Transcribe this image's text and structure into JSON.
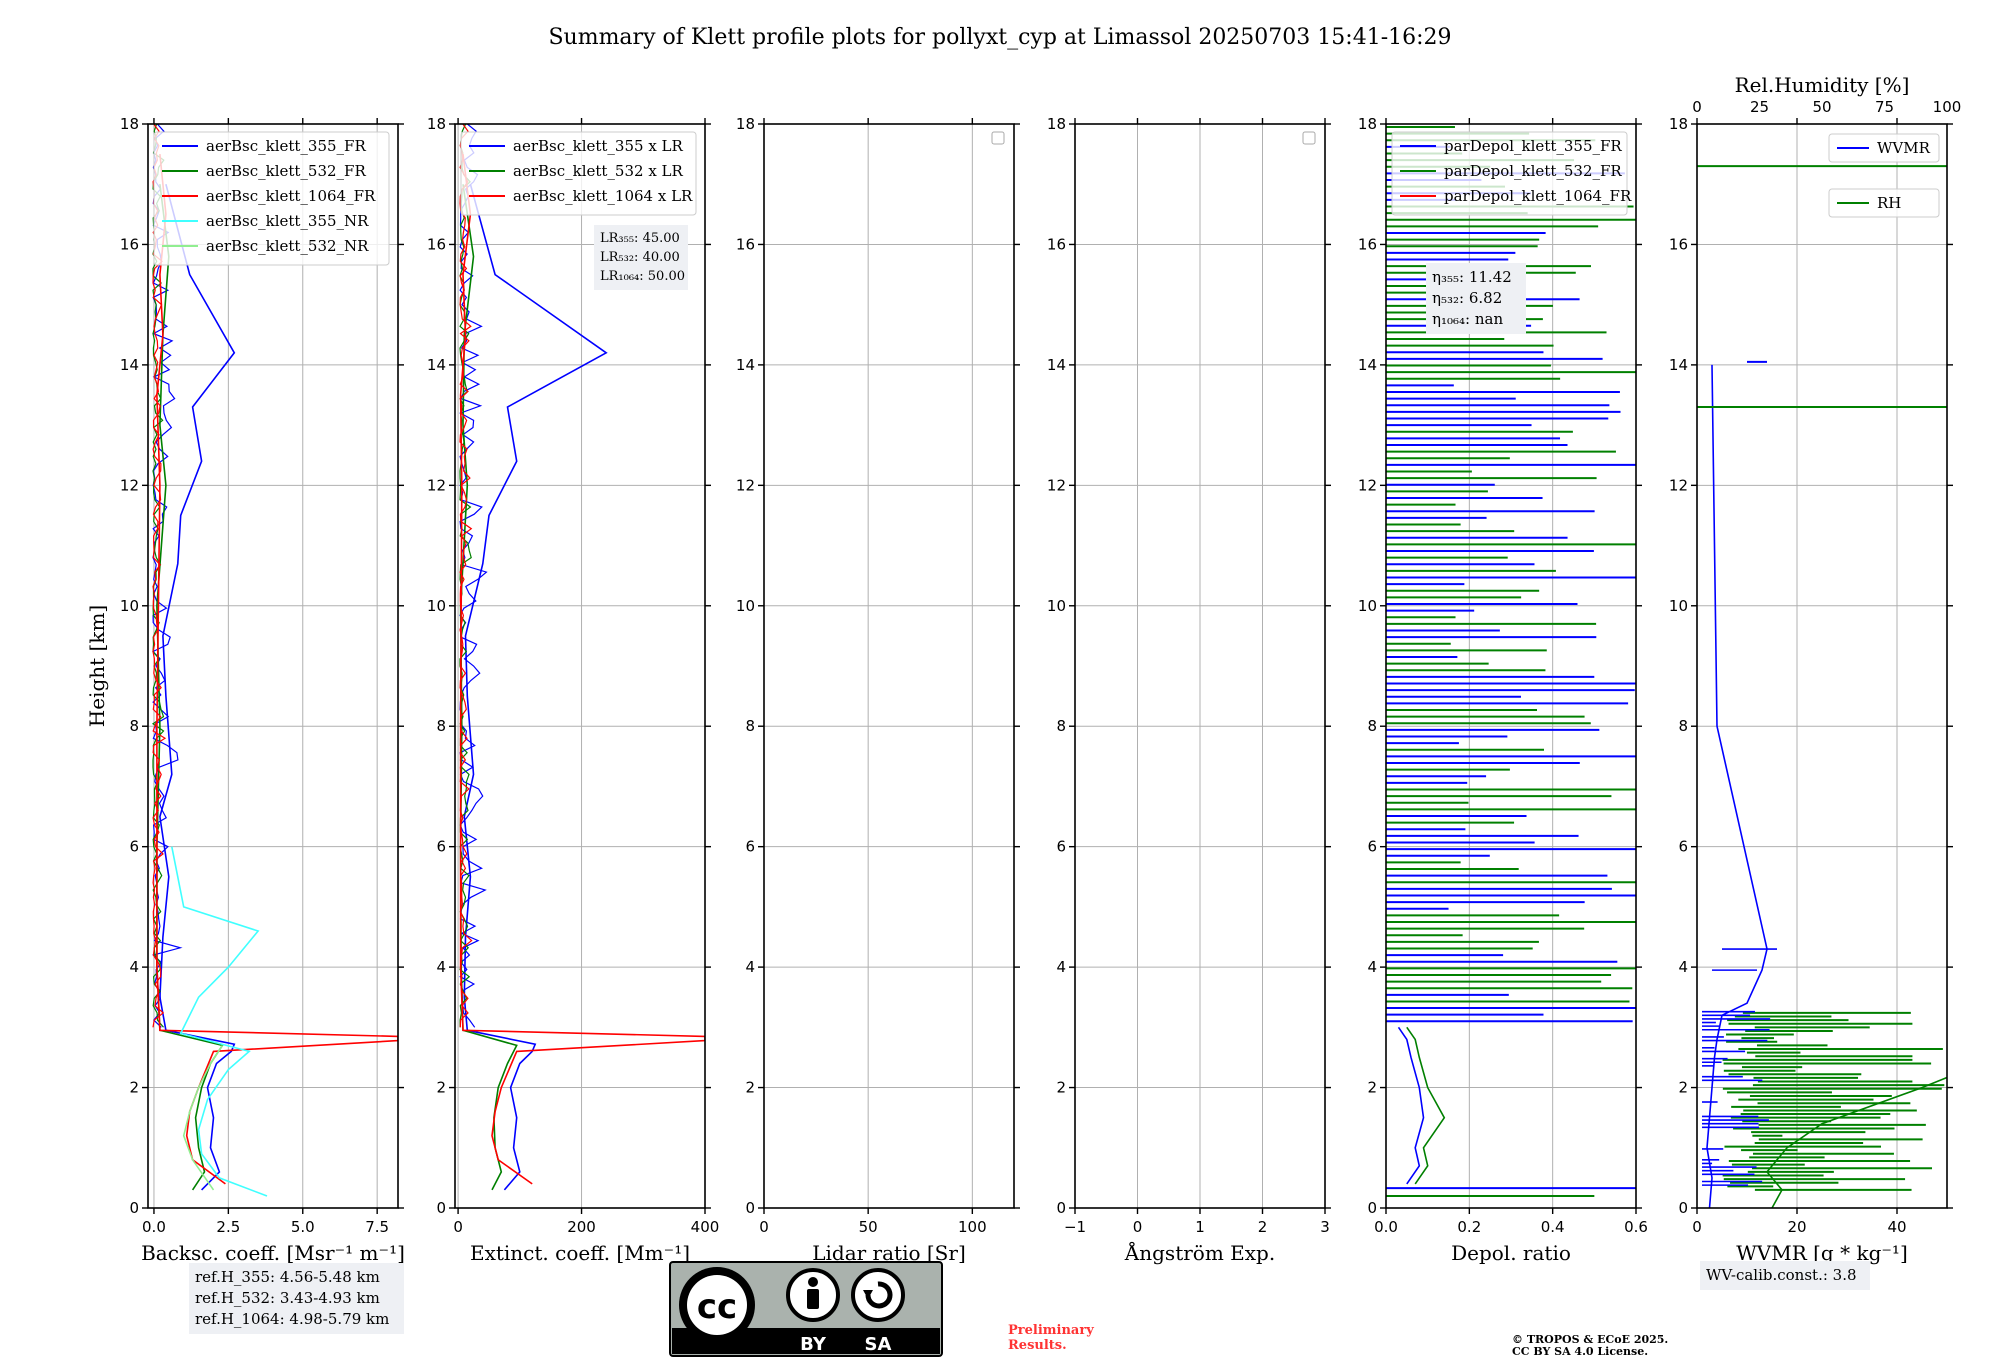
{
  "title": "Summary of Klett profile plots for pollyxt_cyp at Limassol 20250703 15:41-16:29",
  "colors": {
    "c355": "#0000ff",
    "c532": "#008000",
    "c1064": "#ff0000",
    "c355nr": "#40ffff",
    "c532nr": "#90ee90"
  },
  "chart_data": [
    {
      "type": "line",
      "panel": "backscatter",
      "xlabel": "Backsc. coeff. [Msr⁻¹ m⁻¹]",
      "ylabel": "Height [km]",
      "xlim": [
        -0.2,
        8.2
      ],
      "ylim": [
        0,
        18
      ],
      "xticks": [
        "0.0",
        "2.5",
        "5.0",
        "7.5"
      ],
      "xtick_values": [
        0,
        2.5,
        5,
        7.5
      ],
      "yticks": [
        "0",
        "2",
        "4",
        "6",
        "8",
        "10",
        "12",
        "14",
        "16",
        "18"
      ],
      "legend": [
        "aerBsc_klett_355_FR",
        "aerBsc_klett_532_FR",
        "aerBsc_klett_1064_FR",
        "aerBsc_klett_355_NR",
        "aerBsc_klett_532_NR"
      ],
      "legend_position": "top-left",
      "grid": true,
      "series": [
        {
          "name": "aerBsc_klett_355_FR",
          "color": "#0000ff",
          "x": [
            1.6,
            2.2,
            1.9,
            2.0,
            1.8,
            2.1,
            2.6,
            2.7,
            0.4,
            0.2,
            0.3,
            0.5,
            0.2,
            0.6,
            0.4,
            0.3,
            0.8,
            0.9,
            1.6,
            1.3,
            2.7,
            1.2,
            0.4
          ],
          "y": [
            0.3,
            0.6,
            1.0,
            1.5,
            2.0,
            2.4,
            2.6,
            2.72,
            2.95,
            3.5,
            4.5,
            5.5,
            6.5,
            7.2,
            8.5,
            9.5,
            10.7,
            11.5,
            12.4,
            13.3,
            14.2,
            15.5,
            17.0
          ]
        },
        {
          "name": "aerBsc_klett_532_FR",
          "color": "#008000",
          "x": [
            1.3,
            1.7,
            1.5,
            1.4,
            1.6,
            1.9,
            2.3,
            0.2,
            0.1,
            0.1,
            0.2,
            0.1,
            0.4,
            0.2,
            0.3,
            0.5,
            0.2
          ],
          "y": [
            0.3,
            0.6,
            1.0,
            1.5,
            2.0,
            2.4,
            2.7,
            2.95,
            4.0,
            6.0,
            8.0,
            10.0,
            12.0,
            13.0,
            14.5,
            15.8,
            17.0
          ]
        },
        {
          "name": "aerBsc_klett_1064_FR",
          "color": "#ff0000",
          "x": [
            2.4,
            1.3,
            1.1,
            1.2,
            1.5,
            2.0,
            8.2,
            8.2,
            0.2,
            0.1,
            0.1,
            0.2,
            0.1,
            0.3,
            0.2,
            0.4,
            0.2
          ],
          "y": [
            0.4,
            0.8,
            1.2,
            1.6,
            2.0,
            2.6,
            2.78,
            2.85,
            2.95,
            4.0,
            8.0,
            12.0,
            13.5,
            14.5,
            15.5,
            16.5,
            17.5
          ]
        },
        {
          "name": "aerBsc_klett_355_NR",
          "color": "#40ffff",
          "x": [
            3.8,
            2.2,
            1.6,
            1.5,
            1.8,
            2.5,
            3.2,
            0.9,
            1.5,
            2.5,
            3.5,
            1.0,
            0.6
          ],
          "y": [
            0.2,
            0.5,
            0.9,
            1.3,
            1.8,
            2.3,
            2.6,
            2.9,
            3.5,
            4.0,
            4.6,
            5.0,
            6.0
          ]
        },
        {
          "name": "aerBsc_klett_532_NR",
          "color": "#90ee90",
          "x": [
            2.0,
            1.3,
            1.0,
            1.2,
            1.5,
            1.9,
            2.3
          ],
          "y": [
            0.3,
            0.8,
            1.2,
            1.6,
            2.0,
            2.4,
            2.7
          ]
        }
      ],
      "annotation": [
        "ref.H_355: 4.56-5.48 km",
        "ref.H_532: 3.43-4.93 km",
        "ref.H_1064: 4.98-5.79 km"
      ]
    },
    {
      "type": "line",
      "panel": "extinction",
      "xlabel": "Extinct. coeff. [Mm⁻¹]",
      "xlim": [
        -5,
        400
      ],
      "ylim": [
        0,
        18
      ],
      "xticks": [
        "0",
        "200",
        "400"
      ],
      "xtick_values": [
        0,
        200,
        400
      ],
      "yticks": [
        "0",
        "2",
        "4",
        "6",
        "8",
        "10",
        "12",
        "14",
        "16",
        "18"
      ],
      "legend": [
        "aerBsc_klett_355 x LR",
        "aerBsc_klett_532 x LR",
        "aerBsc_klett_1064 x LR"
      ],
      "legend_position": "top-left",
      "grid": true,
      "series": [
        {
          "name": "aerBsc_klett_355 x LR",
          "color": "#0000ff",
          "x": [
            75,
            100,
            90,
            95,
            85,
            100,
            120,
            125,
            15,
            10,
            12,
            20,
            10,
            25,
            15,
            12,
            40,
            50,
            95,
            80,
            240,
            60,
            20
          ],
          "y": [
            0.3,
            0.6,
            1.0,
            1.5,
            2.0,
            2.4,
            2.6,
            2.72,
            2.95,
            3.5,
            4.5,
            5.5,
            6.5,
            7.2,
            8.5,
            9.5,
            10.7,
            11.5,
            12.4,
            13.3,
            14.2,
            15.5,
            17.0
          ]
        },
        {
          "name": "aerBsc_klett_532 x LR",
          "color": "#008000",
          "x": [
            55,
            70,
            60,
            58,
            65,
            80,
            95,
            8,
            5,
            4,
            6,
            4,
            15,
            8,
            10,
            25,
            8
          ],
          "y": [
            0.3,
            0.6,
            1.0,
            1.5,
            2.0,
            2.4,
            2.7,
            2.95,
            4.0,
            6.0,
            8.0,
            10.0,
            12.0,
            13.0,
            14.5,
            15.8,
            17.0
          ]
        },
        {
          "name": "aerBsc_klett_1064 x LR",
          "color": "#ff0000",
          "x": [
            120,
            65,
            55,
            60,
            70,
            95,
            400,
            400,
            8,
            4,
            4,
            6,
            4,
            12,
            8,
            20,
            8
          ],
          "y": [
            0.4,
            0.8,
            1.2,
            1.6,
            2.0,
            2.6,
            2.78,
            2.85,
            2.95,
            4.0,
            8.0,
            12.0,
            13.5,
            14.5,
            15.5,
            16.5,
            17.5
          ]
        }
      ],
      "annotation": [
        "LR₃₅₅: 45.00",
        "LR₅₃₂: 40.00",
        "LR₁₀₆₄: 50.00"
      ]
    },
    {
      "type": "line",
      "panel": "lidar-ratio",
      "xlabel": "Lidar ratio [Sr]",
      "xlim": [
        0,
        120
      ],
      "ylim": [
        0,
        18
      ],
      "xticks": [
        "0",
        "50",
        "100"
      ],
      "xtick_values": [
        0,
        50,
        100
      ],
      "yticks": [
        "0",
        "2",
        "4",
        "6",
        "8",
        "10",
        "12",
        "14",
        "16",
        "18"
      ],
      "grid": true,
      "series": []
    },
    {
      "type": "line",
      "panel": "angstroem",
      "xlabel": "Ångström Exp.",
      "xlim": [
        -1,
        3
      ],
      "ylim": [
        0,
        18
      ],
      "xticks": [
        "−1",
        "0",
        "1",
        "2",
        "3"
      ],
      "xtick_values": [
        -1,
        0,
        1,
        2,
        3
      ],
      "yticks": [
        "0",
        "2",
        "4",
        "6",
        "8",
        "10",
        "12",
        "14",
        "16",
        "18"
      ],
      "grid": true,
      "series": []
    },
    {
      "type": "line",
      "panel": "depol",
      "xlabel": "Depol. ratio",
      "xlim": [
        0,
        0.6
      ],
      "ylim": [
        0,
        18
      ],
      "xticks": [
        "0.0",
        "0.2",
        "0.4",
        "0.6"
      ],
      "xtick_values": [
        0,
        0.2,
        0.4,
        0.6
      ],
      "yticks": [
        "0",
        "2",
        "4",
        "6",
        "8",
        "10",
        "12",
        "14",
        "16",
        "18"
      ],
      "legend": [
        "parDepol_klett_355_FR",
        "parDepol_klett_532_FR",
        "parDepol_klett_1064_FR"
      ],
      "legend_position": "top-left",
      "grid": true,
      "series": [
        {
          "name": "parDepol_klett_355_FR",
          "color": "#0000ff",
          "x": [
            0.05,
            0.08,
            0.07,
            0.09,
            0.08,
            0.06,
            0.05,
            0.03
          ],
          "y": [
            0.4,
            0.7,
            1.0,
            1.5,
            2.0,
            2.5,
            2.8,
            3.0
          ]
        },
        {
          "name": "parDepol_klett_532_FR",
          "color": "#008000",
          "x": [
            0.07,
            0.1,
            0.09,
            0.14,
            0.1,
            0.08,
            0.07,
            0.05
          ],
          "y": [
            0.4,
            0.7,
            1.0,
            1.5,
            2.0,
            2.5,
            2.8,
            3.0
          ]
        }
      ],
      "annotation": [
        "η₃₅₅: 11.42",
        "η₅₃₂: 6.82",
        "η₁₀₆₄: nan"
      ]
    },
    {
      "type": "line",
      "panel": "wv",
      "xlabel": "WVMR [g * kg⁻¹]",
      "x2label": "Rel.Humidity [%]",
      "xlim": [
        0,
        50
      ],
      "x2lim": [
        0,
        100
      ],
      "ylim": [
        0,
        18
      ],
      "xticks": [
        "0",
        "20",
        "40"
      ],
      "xtick_values": [
        0,
        20,
        40
      ],
      "x2ticks": [
        "0",
        "25",
        "50",
        "75",
        "100"
      ],
      "x2tick_values": [
        0,
        25,
        50,
        75,
        100
      ],
      "yticks": [
        "0",
        "2",
        "4",
        "6",
        "8",
        "10",
        "12",
        "14",
        "16",
        "18"
      ],
      "legend": [
        "WVMR",
        "RH"
      ],
      "legend_position": "top-right",
      "grid": true,
      "series": [
        {
          "name": "WVMR",
          "color": "#0000ff",
          "x": [
            2.5,
            3.0,
            2.0,
            2.5,
            3.0,
            3.5,
            4.0,
            5.0,
            10.0,
            13.0,
            14.0,
            4.0,
            3.0
          ],
          "y": [
            0.0,
            0.5,
            1.0,
            1.5,
            2.0,
            2.5,
            2.8,
            3.2,
            3.4,
            3.95,
            4.3,
            8.0,
            14.0
          ]
        },
        {
          "name": "RH",
          "color": "#008000",
          "x": [
            15,
            17,
            14,
            18,
            25,
            45,
            60,
            90,
            100,
            100,
            100
          ],
          "y": [
            0.0,
            0.3,
            0.6,
            1.0,
            1.4,
            2.0,
            2.5,
            3.0,
            3.4,
            13.3,
            17.3
          ]
        }
      ],
      "annotation": [
        "WV-calib.const.: 3.8"
      ]
    }
  ],
  "footer": {
    "license_icon_text": "cc",
    "license_by": "BY",
    "license_sa": "SA",
    "preliminary": [
      "Preliminary",
      "Results."
    ],
    "copyright": [
      "© TROPOS & ECoE 2025.",
      "CC BY SA 4.0 License."
    ]
  }
}
